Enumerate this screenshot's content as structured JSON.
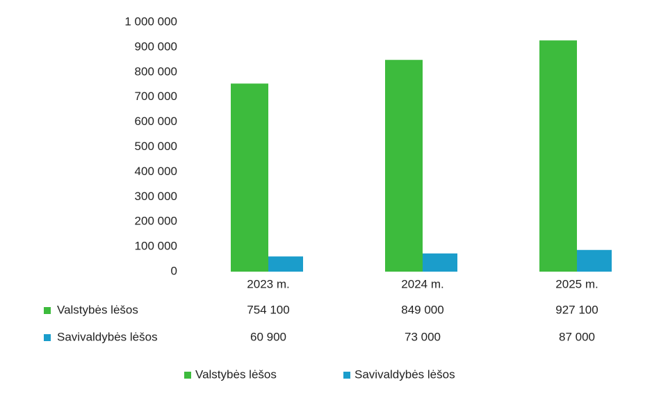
{
  "chart_data": {
    "type": "bar",
    "categories": [
      "2023 m.",
      "2024 m.",
      "2025 m."
    ],
    "series": [
      {
        "name": "Valstybės lėšos",
        "color": "#3dbb3d",
        "values": [
          754100,
          849000,
          927100
        ],
        "value_labels": [
          "754 100",
          "849 000",
          "927 100"
        ]
      },
      {
        "name": "Savivaldybės lėšos",
        "color": "#1b9dcb",
        "values": [
          60900,
          73000,
          87000
        ],
        "value_labels": [
          "60 900",
          "73 000",
          "87 000"
        ]
      }
    ],
    "ylim": [
      0,
      1000000
    ],
    "yticks": [
      0,
      {
        "value": 100000,
        "label": "100 000"
      },
      {
        "value": 200000,
        "label": "200 000"
      },
      {
        "value": 300000,
        "label": "300 000"
      },
      {
        "value": 400000,
        "label": "400 000"
      },
      {
        "value": 500000,
        "label": "500 000"
      },
      {
        "value": 600000,
        "label": "600 000"
      },
      {
        "value": 700000,
        "label": "700 000"
      },
      {
        "value": 800000,
        "label": "800 000"
      },
      {
        "value": 900000,
        "label": "900 000"
      },
      {
        "value": 1000000,
        "label": "1 000 000"
      }
    ],
    "grid": false,
    "legend": "bottom"
  }
}
